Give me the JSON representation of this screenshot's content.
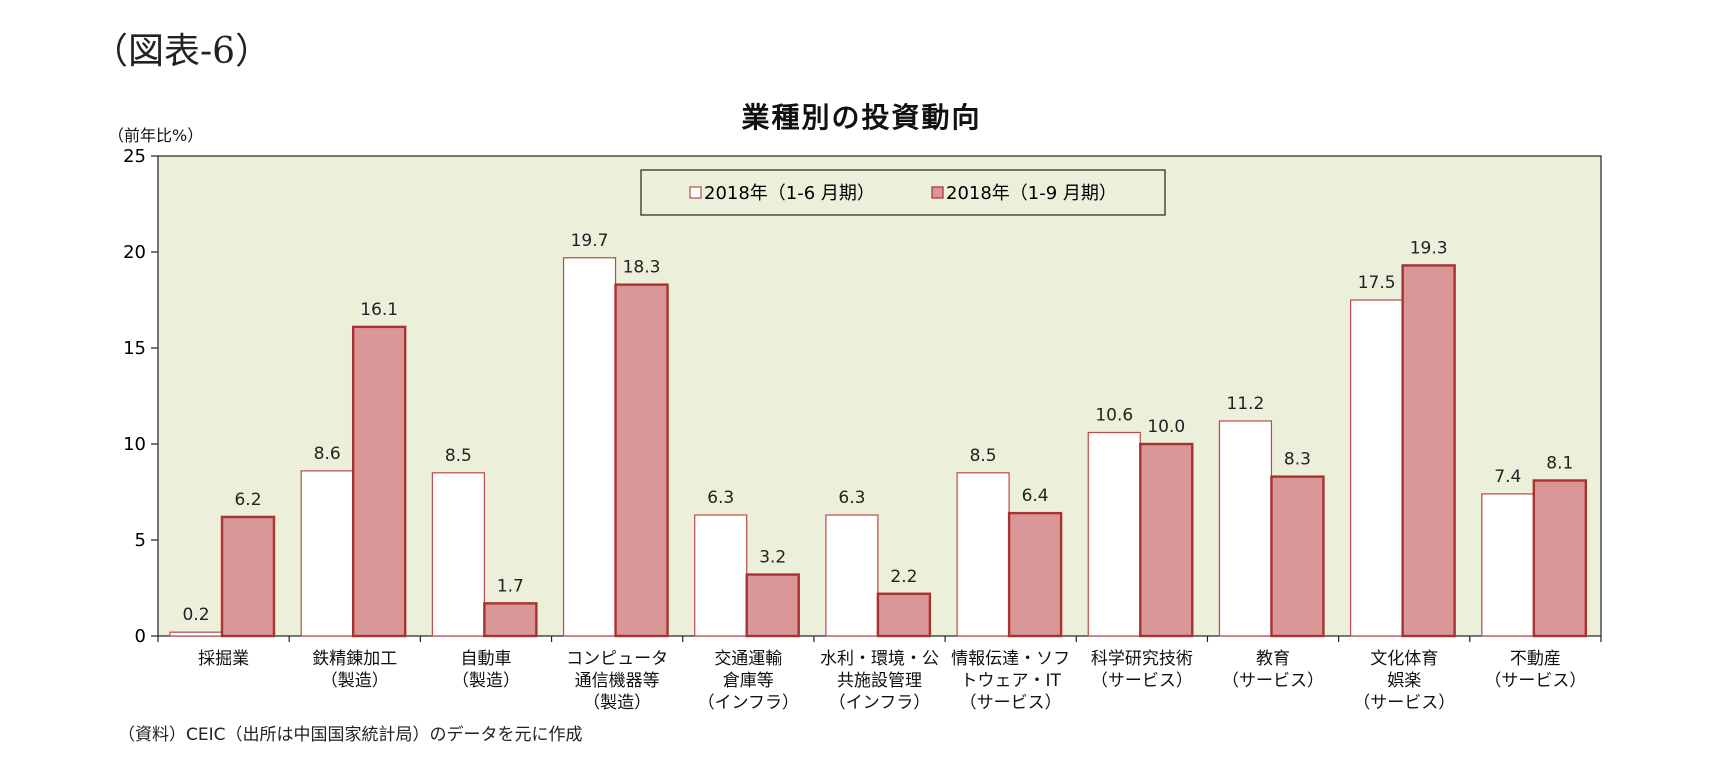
{
  "figure_label": "（図表-6）",
  "source_note": "（資料）CEIC（出所は中国国家統計局）のデータを元に作成",
  "chart_data": {
    "type": "bar",
    "title": "業種別の投資動向",
    "ylabel": "（前年比%）",
    "xlabel": "",
    "ylim": [
      0,
      25
    ],
    "yticks": [
      0,
      5,
      10,
      15,
      20,
      25
    ],
    "grid": false,
    "legend_position": "top-center",
    "categories": [
      [
        "採掘業"
      ],
      [
        "鉄精錬加工",
        "（製造）"
      ],
      [
        "自動車",
        "（製造）"
      ],
      [
        "コンピュータ",
        "通信機器等",
        "（製造）"
      ],
      [
        "交通運輸",
        "倉庫等",
        "（インフラ）"
      ],
      [
        "水利・環境・公",
        "共施設管理",
        "（インフラ）"
      ],
      [
        "情報伝達・ソフ",
        "トウェア・IT",
        "（サービス）"
      ],
      [
        "科学研究技術",
        "（サービス）"
      ],
      [
        "教育",
        "（サービス）"
      ],
      [
        "文化体育",
        "娯楽",
        "（サービス）"
      ],
      [
        "不動産",
        "（サービス）"
      ]
    ],
    "series": [
      {
        "name": "2018年（1-6 月期）",
        "values": [
          0.2,
          8.6,
          8.5,
          19.7,
          6.3,
          6.3,
          8.5,
          10.6,
          11.2,
          17.5,
          7.4
        ],
        "labels": [
          "0.2",
          "8.6",
          "8.5",
          "19.7",
          "6.3",
          "6.3",
          "8.5",
          "10.6",
          "11.2",
          "17.5",
          "7.4"
        ]
      },
      {
        "name": "2018年（1-9 月期）",
        "values": [
          6.2,
          16.1,
          1.7,
          18.3,
          3.2,
          2.2,
          6.4,
          10.0,
          8.3,
          19.3,
          8.1
        ],
        "labels": [
          "6.2",
          "16.1",
          "1.7",
          "18.3",
          "3.2",
          "2.2",
          "6.4",
          "10.0",
          "8.3",
          "19.3",
          "8.1"
        ]
      }
    ],
    "colors": {
      "plot_background": "#ecefd9",
      "series1_fill": "#ffffff",
      "series1_stroke": "#b84a4a",
      "series2_fill": "#d99797",
      "series2_stroke": "#a83232"
    }
  }
}
